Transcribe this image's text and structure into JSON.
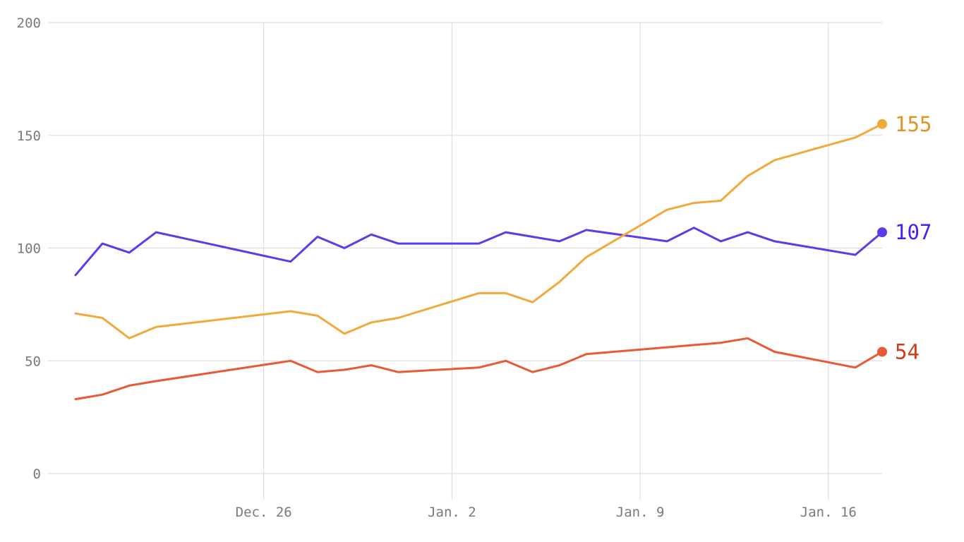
{
  "chart_data": {
    "type": "line",
    "title": "",
    "xlabel": "",
    "ylabel": "",
    "x_axis_type": "date",
    "xlim": [
      "2021-12-19",
      "2022-01-18"
    ],
    "ylim": [
      0,
      200
    ],
    "y_ticks": [
      0,
      50,
      100,
      150,
      200
    ],
    "x_ticks": [
      {
        "date": "2021-12-26",
        "label": "Dec. 26"
      },
      {
        "date": "2022-01-02",
        "label": "Jan. 2"
      },
      {
        "date": "2022-01-09",
        "label": "Jan. 9"
      },
      {
        "date": "2022-01-16",
        "label": "Jan. 16"
      }
    ],
    "grid": true,
    "legend": "none",
    "x": [
      "2021-12-19",
      "2021-12-20",
      "2021-12-21",
      "2021-12-22",
      "2021-12-23",
      "2021-12-24",
      "2021-12-25",
      "2021-12-26",
      "2021-12-27",
      "2021-12-28",
      "2021-12-29",
      "2021-12-30",
      "2021-12-31",
      "2022-01-01",
      "2022-01-02",
      "2022-01-03",
      "2022-01-04",
      "2022-01-05",
      "2022-01-06",
      "2022-01-07",
      "2022-01-08",
      "2022-01-09",
      "2022-01-10",
      "2022-01-11",
      "2022-01-12",
      "2022-01-13",
      "2022-01-14",
      "2022-01-15",
      "2022-01-16",
      "2022-01-17",
      "2022-01-18"
    ],
    "series": [
      {
        "color": "#5b3bea",
        "end_label_color": "#4a1df0",
        "end_label": "107",
        "values": [
          88,
          102,
          98,
          107,
          null,
          null,
          null,
          null,
          94,
          105,
          100,
          106,
          102,
          null,
          null,
          102,
          107,
          105,
          103,
          108,
          null,
          null,
          103,
          109,
          103,
          107,
          103,
          null,
          null,
          97,
          107
        ]
      },
      {
        "color": "#f2a93b",
        "end_label_color": "#e09626",
        "end_label": "155",
        "values": [
          71,
          69,
          60,
          65,
          null,
          null,
          null,
          null,
          72,
          70,
          62,
          67,
          69,
          null,
          null,
          80,
          80,
          76,
          85,
          96,
          null,
          null,
          117,
          120,
          121,
          132,
          139,
          null,
          null,
          149,
          155
        ]
      },
      {
        "color": "#e85a36",
        "end_label_color": "#d23a1e",
        "end_label": "54",
        "values": [
          33,
          35,
          39,
          41,
          null,
          null,
          null,
          null,
          50,
          45,
          46,
          48,
          45,
          null,
          null,
          47,
          50,
          45,
          48,
          53,
          null,
          null,
          56,
          57,
          58,
          60,
          54,
          null,
          null,
          47,
          54
        ]
      }
    ]
  }
}
